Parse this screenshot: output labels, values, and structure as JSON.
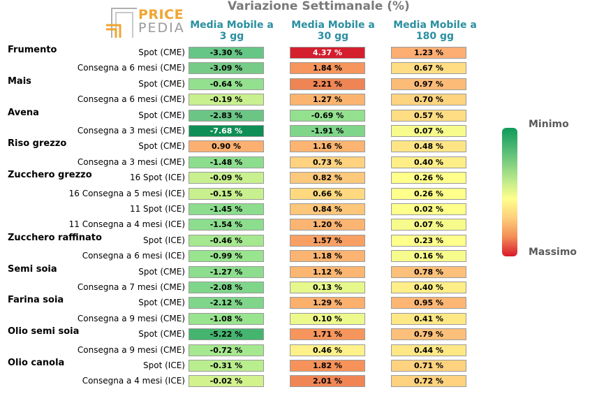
{
  "title": "Variazione Settimanale (%)",
  "logo": {
    "line1": "PRICE",
    "line2": "PEDIA"
  },
  "legend": {
    "min_label": "Minimo",
    "max_label": "Massimo"
  },
  "chart_data": {
    "type": "table",
    "title": "Variazione Settimanale (%)",
    "columns": [
      "Media Mobile a 3 gg",
      "Media Mobile a 30 gg",
      "Media Mobile a 180 gg"
    ],
    "rows": [
      {
        "group": "Frumento",
        "label": "Spot (CME)",
        "values": [
          "-3.30 %",
          "4.37 %",
          "1.23 %"
        ]
      },
      {
        "group": "",
        "label": "Consegna a 6 mesi (CME)",
        "values": [
          "-3.09 %",
          "1.84 %",
          "0.67 %"
        ]
      },
      {
        "group": "Mais",
        "label": "Spot (CME)",
        "values": [
          "-0.64 %",
          "2.21 %",
          "0.97 %"
        ]
      },
      {
        "group": "",
        "label": "Consegna a 6 mesi (CME)",
        "values": [
          "-0.19 %",
          "1.27 %",
          "0.70 %"
        ]
      },
      {
        "group": "Avena",
        "label": "Spot (CME)",
        "values": [
          "-2.83 %",
          "-0.69 %",
          "0.57 %"
        ]
      },
      {
        "group": "",
        "label": "Consegna a 3 mesi (CME)",
        "values": [
          "-7.68 %",
          "-1.91 %",
          "0.07 %"
        ]
      },
      {
        "group": "Riso grezzo",
        "label": "Spot (CME)",
        "values": [
          "0.90 %",
          "1.16 %",
          "0.48 %"
        ]
      },
      {
        "group": "",
        "label": "Consegna a 3 mesi (CME)",
        "values": [
          "-1.48 %",
          "0.73 %",
          "0.40 %"
        ]
      },
      {
        "group": "Zucchero grezzo",
        "label": "16 Spot (ICE)",
        "values": [
          "-0.09 %",
          "0.82 %",
          "0.26 %"
        ]
      },
      {
        "group": "",
        "label": "16 Consegna a 5 mesi (ICE)",
        "values": [
          "-0.15 %",
          "0.66 %",
          "0.26 %"
        ]
      },
      {
        "group": "",
        "label": "11 Spot (ICE)",
        "values": [
          "-1.45 %",
          "0.84 %",
          "0.02 %"
        ]
      },
      {
        "group": "",
        "label": "11 Consegna a 4 mesi (ICE)",
        "values": [
          "-1.54 %",
          "1.20 %",
          "0.07 %"
        ]
      },
      {
        "group": "Zucchero raffinato",
        "label": "Spot (ICE)",
        "values": [
          "-0.46 %",
          "1.57 %",
          "0.23 %"
        ]
      },
      {
        "group": "",
        "label": "Consegna a 6 mesi (ICE)",
        "values": [
          "-0.99 %",
          "1.18 %",
          "0.16 %"
        ]
      },
      {
        "group": "Semi soia",
        "label": "Spot (CME)",
        "values": [
          "-1.27 %",
          "1.12 %",
          "0.78 %"
        ]
      },
      {
        "group": "",
        "label": "Consegna a 7 mesi (CME)",
        "values": [
          "-2.08 %",
          "0.13 %",
          "0.40 %"
        ]
      },
      {
        "group": "Farina soia",
        "label": "Spot (CME)",
        "values": [
          "-2.12 %",
          "1.29 %",
          "0.95 %"
        ]
      },
      {
        "group": "",
        "label": "Consegna a 9 mesi (CME)",
        "values": [
          "-1.08 %",
          "0.10 %",
          "0.41 %"
        ]
      },
      {
        "group": "Olio semi soia",
        "label": "Spot (CME)",
        "values": [
          "-5.22 %",
          "1.71 %",
          "0.79 %"
        ]
      },
      {
        "group": "",
        "label": "Consegna a 9 mesi (CME)",
        "values": [
          "-0.72 %",
          "0.46 %",
          "0.44 %"
        ]
      },
      {
        "group": "Olio canola",
        "label": "Spot (ICE)",
        "values": [
          "-0.31 %",
          "1.82 %",
          "0.71 %"
        ]
      },
      {
        "group": "",
        "label": "Consegna a 4 mesi (ICE)",
        "values": [
          "-0.02 %",
          "2.01 %",
          "0.72 %"
        ]
      }
    ],
    "cell_colors": [
      [
        "#66c685",
        "#d41f2e",
        "#fdae72"
      ],
      [
        "#76cc86",
        "#f6955c",
        "#fedd84"
      ],
      [
        "#93e18e",
        "#ef8555",
        "#fdbb78"
      ],
      [
        "#c8f08e",
        "#fbb46f",
        "#fed480"
      ],
      [
        "#6bc686",
        "#93e18e",
        "#fedd84"
      ],
      [
        "#0e8f55",
        "#7fd68a",
        "#f7fb8c"
      ],
      [
        "#fbb071",
        "#fbb471",
        "#fde586"
      ],
      [
        "#8cdd8e",
        "#fed27f",
        "#feee88"
      ],
      [
        "#c8f08e",
        "#fcc87b",
        "#ffff8c"
      ],
      [
        "#c8f08e",
        "#fed97f",
        "#ffff8c"
      ],
      [
        "#8cdd8e",
        "#fcc67b",
        "#ffff8c"
      ],
      [
        "#8cdd8e",
        "#fbb472",
        "#f7fb8c"
      ],
      [
        "#a6e88f",
        "#f8a064",
        "#ffff8c"
      ],
      [
        "#99e48f",
        "#fbb471",
        "#f7fb8c"
      ],
      [
        "#8cdd8e",
        "#fbb671",
        "#fdc07a"
      ],
      [
        "#7fd68a",
        "#e6f78c",
        "#feee88"
      ],
      [
        "#7fd68a",
        "#fbb06e",
        "#fdb674"
      ],
      [
        "#99e48f",
        "#edf98c",
        "#fee886"
      ],
      [
        "#45b46e",
        "#f6955c",
        "#fdc07a"
      ],
      [
        "#a6e88f",
        "#fff18a",
        "#fee886"
      ],
      [
        "#b9ee8f",
        "#f6925a",
        "#fed27f"
      ],
      [
        "#d2f28e",
        "#f08655",
        "#fed27f"
      ]
    ]
  }
}
